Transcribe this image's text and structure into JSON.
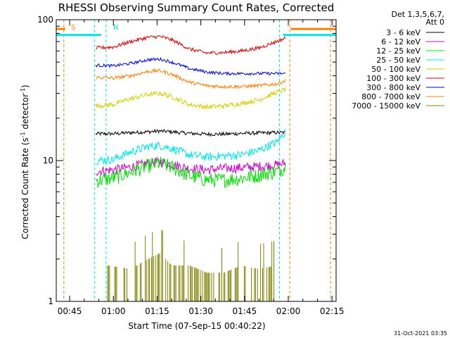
{
  "chart_data": {
    "type": "line",
    "title": "RHESSI Observing Summary Count Rates, Corrected",
    "xlabel": "Start Time (07-Sep-15 00:40:22)",
    "ylabel_main": "Corrected Count Rate (s",
    "ylabel_sup1": "-1",
    "ylabel_mid": " detector",
    "ylabel_sup2": "-1",
    "ylabel_end": ")",
    "yscale": "log",
    "ylim": [
      1,
      100
    ],
    "xlim_min": [
      40.4,
      136.4
    ],
    "x_ticks": [
      {
        "min": 45,
        "label": "00:45"
      },
      {
        "min": 60,
        "label": "01:00"
      },
      {
        "min": 75,
        "label": "01:15"
      },
      {
        "min": 90,
        "label": "01:30"
      },
      {
        "min": 105,
        "label": "01:45"
      },
      {
        "min": 120,
        "label": "02:00"
      },
      {
        "min": 135,
        "label": "02:15"
      }
    ],
    "y_ticks": [
      {
        "v": 1,
        "label": "1"
      },
      {
        "v": 10,
        "label": "10"
      },
      {
        "v": 100,
        "label": "100"
      }
    ],
    "legend_header": [
      "Det 1,3,5,6,7,",
      "Att 0"
    ],
    "series": [
      {
        "name": "3 - 6 keV",
        "color": "#000000",
        "points": [
          [
            54,
            15.5
          ],
          [
            60,
            15.5
          ],
          [
            66,
            15.8
          ],
          [
            72,
            16.0
          ],
          [
            76,
            16.2
          ],
          [
            80,
            16.0
          ],
          [
            86,
            15.6
          ],
          [
            92,
            15.4
          ],
          [
            98,
            15.4
          ],
          [
            104,
            15.6
          ],
          [
            110,
            15.7
          ],
          [
            116,
            15.8
          ],
          [
            119,
            15.8
          ]
        ]
      },
      {
        "name": "6 - 12 keV",
        "color": "#d000d0",
        "points": [
          [
            54,
            8.4
          ],
          [
            60,
            8.6
          ],
          [
            66,
            9.0
          ],
          [
            72,
            9.6
          ],
          [
            76,
            9.8
          ],
          [
            80,
            9.4
          ],
          [
            86,
            8.8
          ],
          [
            92,
            8.6
          ],
          [
            98,
            8.8
          ],
          [
            104,
            8.9
          ],
          [
            110,
            9.1
          ],
          [
            116,
            9.3
          ],
          [
            119,
            9.6
          ]
        ]
      },
      {
        "name": "12 - 25 keV",
        "color": "#00e000",
        "points": [
          [
            54,
            7.2
          ],
          [
            60,
            7.5
          ],
          [
            66,
            8.3
          ],
          [
            72,
            9.2
          ],
          [
            76,
            9.6
          ],
          [
            80,
            9.0
          ],
          [
            86,
            7.8
          ],
          [
            92,
            7.3
          ],
          [
            98,
            7.3
          ],
          [
            104,
            7.5
          ],
          [
            110,
            7.9
          ],
          [
            116,
            8.4
          ],
          [
            119,
            9.0
          ]
        ]
      },
      {
        "name": "25 - 50 keV",
        "color": "#00e8e8",
        "points": [
          [
            54,
            10.0
          ],
          [
            60,
            10.2
          ],
          [
            66,
            11.5
          ],
          [
            72,
            12.6
          ],
          [
            76,
            12.8
          ],
          [
            80,
            12.2
          ],
          [
            86,
            11.0
          ],
          [
            92,
            10.6
          ],
          [
            98,
            10.8
          ],
          [
            104,
            11.0
          ],
          [
            110,
            11.8
          ],
          [
            116,
            13.5
          ],
          [
            119,
            16.0
          ]
        ]
      },
      {
        "name": "50 - 100 keV",
        "color": "#d0d000",
        "points": [
          [
            54,
            24.5
          ],
          [
            60,
            25.0
          ],
          [
            66,
            27.5
          ],
          [
            72,
            29.5
          ],
          [
            76,
            30.0
          ],
          [
            80,
            28.5
          ],
          [
            86,
            25.0
          ],
          [
            92,
            24.0
          ],
          [
            98,
            24.5
          ],
          [
            104,
            25.5
          ],
          [
            110,
            27.0
          ],
          [
            116,
            30.5
          ],
          [
            119,
            32.0
          ]
        ]
      },
      {
        "name": "100 - 300 keV",
        "color": "#e00000",
        "points": [
          [
            54,
            63.0
          ],
          [
            60,
            64.0
          ],
          [
            66,
            70.0
          ],
          [
            72,
            75.0
          ],
          [
            76,
            76.0
          ],
          [
            80,
            72.0
          ],
          [
            86,
            62.0
          ],
          [
            92,
            58.0
          ],
          [
            98,
            58.5
          ],
          [
            104,
            60.0
          ],
          [
            110,
            63.0
          ],
          [
            116,
            70.0
          ],
          [
            119,
            74.0
          ]
        ]
      },
      {
        "name": "300 - 800 keV",
        "color": "#0000e0",
        "points": [
          [
            54,
            47.5
          ],
          [
            60,
            47.0
          ],
          [
            66,
            49.0
          ],
          [
            72,
            52.0
          ],
          [
            76,
            52.5
          ],
          [
            80,
            50.0
          ],
          [
            86,
            45.0
          ],
          [
            92,
            42.5
          ],
          [
            98,
            41.5
          ],
          [
            104,
            41.5
          ],
          [
            110,
            41.5
          ],
          [
            116,
            41.5
          ],
          [
            119,
            41.5
          ]
        ]
      },
      {
        "name": "800 - 7000 keV",
        "color": "#ff8000",
        "points": [
          [
            54,
            39.0
          ],
          [
            60,
            38.5
          ],
          [
            66,
            40.0
          ],
          [
            72,
            43.0
          ],
          [
            76,
            43.5
          ],
          [
            80,
            41.0
          ],
          [
            86,
            36.0
          ],
          [
            92,
            34.0
          ],
          [
            98,
            33.5
          ],
          [
            104,
            33.5
          ],
          [
            110,
            34.0
          ],
          [
            116,
            35.0
          ],
          [
            119,
            37.0
          ]
        ]
      },
      {
        "name": "7000 - 15000 keV",
        "color": "#808000",
        "points": [
          [
            58,
            1.8
          ],
          [
            66,
            1.7
          ],
          [
            72,
            2.0
          ],
          [
            76,
            2.2
          ],
          [
            80,
            1.8
          ],
          [
            86,
            1.8
          ],
          [
            92,
            1.6
          ],
          [
            98,
            1.6
          ],
          [
            104,
            1.8
          ],
          [
            110,
            1.7
          ],
          [
            116,
            1.8
          ]
        ]
      }
    ],
    "annotations": [
      {
        "text": "S",
        "at_min": 44.0,
        "color": "#ff8000"
      },
      {
        "text": "N",
        "at_min": 58.5,
        "color": "#00e8e8"
      }
    ],
    "markers": [
      {
        "min": 43.0,
        "color": "#ff8000"
      },
      {
        "min": 53.5,
        "color": "#00e8e8"
      },
      {
        "min": 57.5,
        "color": "#00e8e8"
      },
      {
        "min": 117.0,
        "color": "#00e8e8"
      },
      {
        "min": 120.5,
        "color": "#ff8000"
      },
      {
        "min": 134.5,
        "color": "#ff8000"
      }
    ],
    "footer": "31-Oct-2021 03:35"
  }
}
